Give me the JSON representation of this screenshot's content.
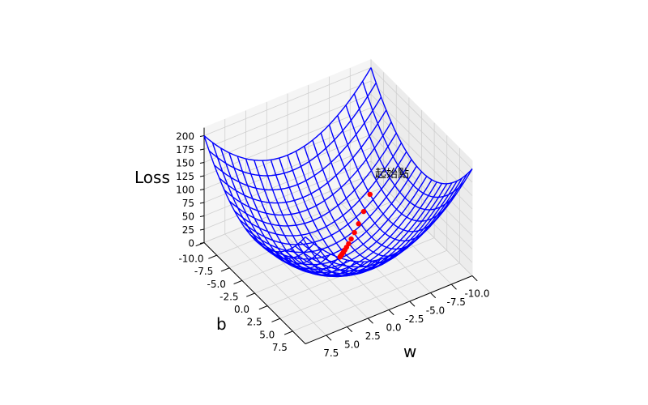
{
  "chart_data": {
    "type": "surface-wireframe-3d",
    "title": "",
    "function": "Loss = w^2 + b^2",
    "xlabel": "w",
    "ylabel": "b",
    "zlabel": "Loss",
    "xlim": [
      -10,
      10
    ],
    "ylim": [
      -10,
      10
    ],
    "zlim": [
      0,
      200
    ],
    "x_ticks": [
      "-10.0",
      "-7.5",
      "-5.0",
      "-2.5",
      "0.0",
      "2.5",
      "5.0",
      "7.5"
    ],
    "x_tick_values": [
      -10,
      -7.5,
      -5,
      -2.5,
      0,
      2.5,
      5,
      7.5
    ],
    "y_ticks": [
      "-10.0",
      "-7.5",
      "-5.0",
      "-2.5",
      "0.0",
      "2.5",
      "5.0",
      "7.5"
    ],
    "y_tick_values": [
      -10,
      -7.5,
      -5,
      -2.5,
      0,
      2.5,
      5,
      7.5
    ],
    "z_ticks": [
      "0",
      "25",
      "50",
      "75",
      "100",
      "125",
      "150",
      "175",
      "200"
    ],
    "z_tick_values": [
      0,
      25,
      50,
      75,
      100,
      125,
      150,
      175,
      200
    ],
    "wireframe_color": "#0000ff",
    "wireframe_step": 1,
    "path_color": "#ff0000",
    "path_start": [
      -6,
      -3.6
    ],
    "path_decay": 0.8,
    "path_points": 14,
    "annotation": "起始點",
    "grid": true
  }
}
